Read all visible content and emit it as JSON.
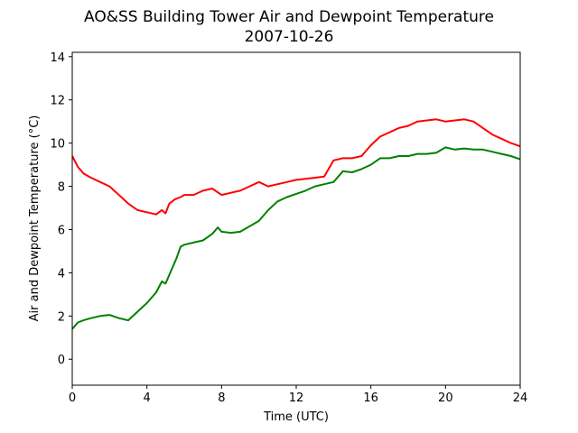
{
  "chart_data": {
    "type": "line",
    "title": "AO&SS Building Tower Air and Dewpoint Temperature",
    "subtitle": "2007-10-26",
    "xlabel": "Time (UTC)",
    "ylabel": "Air and Dewpoint Temperature (°C)",
    "xlim": [
      0,
      24
    ],
    "ylim": [
      -1.2,
      14.2
    ],
    "xticks": [
      0,
      4,
      8,
      12,
      16,
      20,
      24
    ],
    "yticks": [
      0,
      2,
      4,
      6,
      8,
      10,
      12,
      14
    ],
    "grid": false,
    "legend": "none",
    "series": [
      {
        "color": "#ff0000",
        "x": [
          0,
          0.3,
          0.6,
          1.0,
          1.5,
          2.0,
          2.5,
          3.0,
          3.5,
          4.0,
          4.5,
          4.8,
          5.0,
          5.2,
          5.5,
          5.8,
          6.0,
          6.5,
          7.0,
          7.5,
          8.0,
          8.5,
          9.0,
          9.5,
          10.0,
          10.5,
          11.0,
          11.5,
          12.0,
          12.5,
          13.0,
          13.5,
          14.0,
          14.5,
          15.0,
          15.5,
          16.0,
          16.5,
          17.0,
          17.5,
          18.0,
          18.5,
          19.0,
          19.5,
          20.0,
          20.5,
          21.0,
          21.5,
          22.0,
          22.5,
          23.0,
          23.5,
          24.0
        ],
        "y": [
          9.4,
          8.9,
          8.6,
          8.4,
          8.2,
          8.0,
          7.6,
          7.2,
          6.9,
          6.8,
          6.7,
          6.9,
          6.75,
          7.2,
          7.4,
          7.5,
          7.6,
          7.6,
          7.8,
          7.9,
          7.6,
          7.7,
          7.8,
          8.0,
          8.2,
          8.0,
          8.1,
          8.2,
          8.3,
          8.35,
          8.4,
          8.45,
          9.2,
          9.3,
          9.3,
          9.4,
          9.9,
          10.3,
          10.5,
          10.7,
          10.8,
          11.0,
          11.05,
          11.1,
          11.0,
          11.05,
          11.1,
          11.0,
          10.7,
          10.4,
          10.2,
          10.0,
          9.85
        ]
      },
      {
        "color": "#008000",
        "x": [
          0,
          0.3,
          0.6,
          1.0,
          1.5,
          2.0,
          2.5,
          3.0,
          3.5,
          4.0,
          4.5,
          4.8,
          5.0,
          5.3,
          5.6,
          5.8,
          6.0,
          6.5,
          7.0,
          7.5,
          7.8,
          8.0,
          8.5,
          9.0,
          9.5,
          10.0,
          10.5,
          11.0,
          11.5,
          12.0,
          12.5,
          13.0,
          13.5,
          14.0,
          14.5,
          15.0,
          15.5,
          16.0,
          16.5,
          17.0,
          17.5,
          18.0,
          18.5,
          19.0,
          19.5,
          20.0,
          20.5,
          21.0,
          21.5,
          22.0,
          22.5,
          23.0,
          23.5,
          24.0
        ],
        "y": [
          1.4,
          1.7,
          1.8,
          1.9,
          2.0,
          2.05,
          1.9,
          1.8,
          2.2,
          2.6,
          3.1,
          3.6,
          3.5,
          4.1,
          4.7,
          5.2,
          5.3,
          5.4,
          5.5,
          5.8,
          6.1,
          5.9,
          5.85,
          5.9,
          6.15,
          6.4,
          6.9,
          7.3,
          7.5,
          7.65,
          7.8,
          8.0,
          8.1,
          8.2,
          8.7,
          8.65,
          8.8,
          9.0,
          9.3,
          9.3,
          9.4,
          9.4,
          9.5,
          9.5,
          9.55,
          9.8,
          9.7,
          9.75,
          9.7,
          9.7,
          9.6,
          9.5,
          9.4,
          9.25
        ]
      }
    ]
  }
}
